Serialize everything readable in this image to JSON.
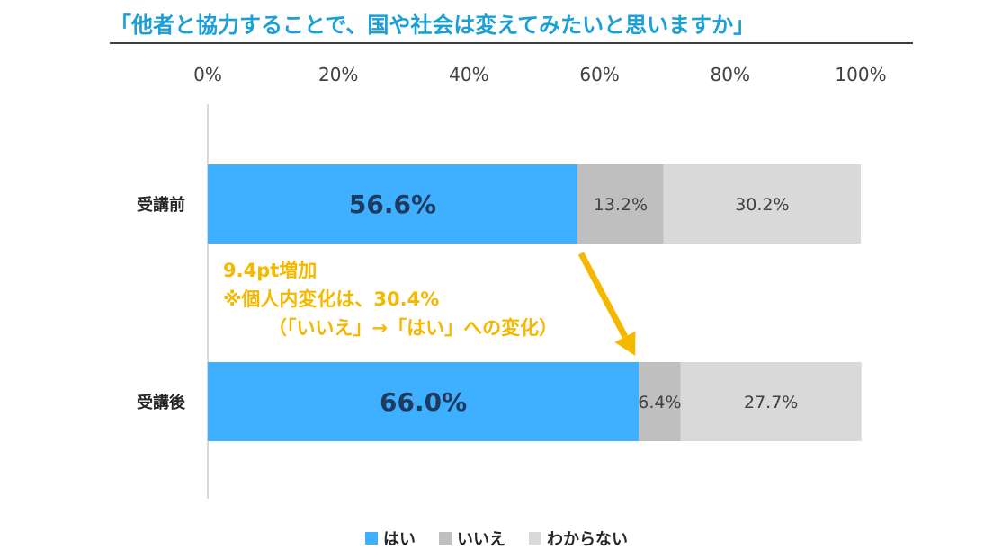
{
  "header": {
    "title": "「他者と協力することで、国や社会は変えてみたいと思いますか」"
  },
  "annotation": {
    "line1": "9.4pt増加",
    "line2": "※個人内変化は、30.4%",
    "line3": "（「いいえ」→「はい」への変化）",
    "color": "#f5b800"
  },
  "chart_data": {
    "type": "bar",
    "orientation": "horizontal",
    "stacked": true,
    "categories": [
      "受講前",
      "受講後"
    ],
    "series": [
      {
        "name": "はい",
        "values": [
          56.6,
          66.0
        ],
        "labels": [
          "56.6%",
          "66.0%"
        ],
        "color": "#3fb0ff"
      },
      {
        "name": "いいえ",
        "values": [
          13.2,
          6.4
        ],
        "labels": [
          "13.2%",
          "6.4%"
        ],
        "color": "#bfbfbf"
      },
      {
        "name": "わからない",
        "values": [
          30.2,
          27.7
        ],
        "labels": [
          "30.2%",
          "27.7%"
        ],
        "color": "#d9d9d9"
      }
    ],
    "xlim": [
      0,
      100
    ],
    "xticks": [
      "0%",
      "20%",
      "40%",
      "60%",
      "80%",
      "100%"
    ],
    "legend_position": "bottom",
    "grid": false
  }
}
